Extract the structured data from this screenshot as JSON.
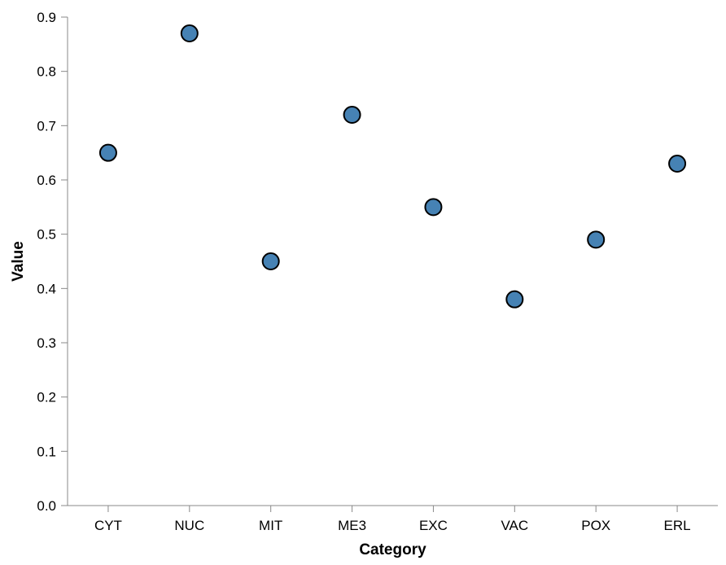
{
  "chart_data": {
    "type": "scatter",
    "title": "",
    "xlabel": "Category",
    "ylabel": "Value",
    "categories": [
      "CYT",
      "NUC",
      "MIT",
      "ME3",
      "EXC",
      "VAC",
      "POX",
      "ERL"
    ],
    "values": [
      0.65,
      0.87,
      0.45,
      0.72,
      0.55,
      0.38,
      0.49,
      0.63
    ],
    "ylim": [
      0,
      0.9
    ],
    "yticks": [
      "0.0",
      "0.1",
      "0.2",
      "0.3",
      "0.4",
      "0.5",
      "0.6",
      "0.7",
      "0.8",
      "0.9"
    ],
    "grid": false,
    "legend": "none",
    "colors": {
      "point_fill": "#4682b4",
      "point_stroke": "#000000",
      "axis": "#888888"
    }
  }
}
